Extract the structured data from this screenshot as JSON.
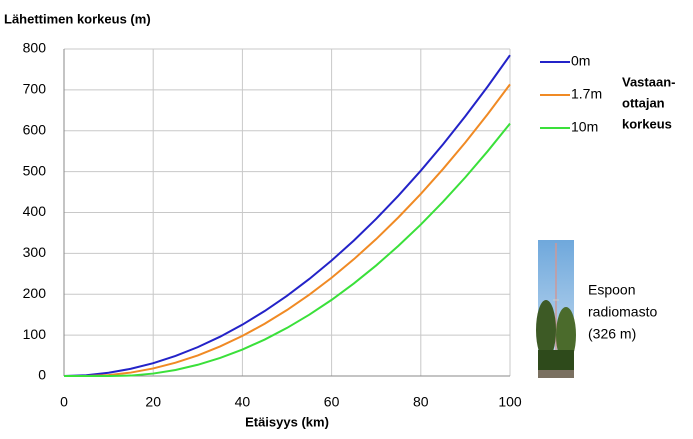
{
  "chart_data": {
    "type": "line",
    "title": "Lähettimen korkeus (m)",
    "x_label": "Etäisyys (km)",
    "legend_title": [
      "Vastaan-",
      "ottajan",
      "korkeus"
    ],
    "annotation": [
      "Espoon",
      "radiomasto",
      "(326 m)"
    ],
    "x": [
      0,
      5,
      10,
      15,
      20,
      25,
      30,
      35,
      40,
      45,
      50,
      55,
      60,
      65,
      70,
      75,
      80,
      85,
      90,
      95,
      100
    ],
    "series": [
      {
        "name": "0m",
        "color": "#2323c8",
        "values": [
          0,
          1.96,
          7.85,
          17.66,
          31.39,
          49.05,
          70.63,
          96.14,
          125.57,
          158.92,
          196.2,
          237.4,
          282.5,
          331.6,
          384.6,
          441.4,
          502.3,
          567.0,
          635.7,
          708.3,
          784.8
        ]
      },
      {
        "name": "1.7m",
        "color": "#f08a24",
        "values": [
          0,
          0.01,
          2.24,
          8.4,
          18.48,
          32.49,
          50.42,
          72.27,
          98.05,
          127.75,
          161.4,
          198.9,
          240.4,
          285.8,
          335.1,
          388.4,
          445.5,
          506.6,
          571.6,
          640.6,
          713.5
        ]
      },
      {
        "name": "10m",
        "color": "#3ae03a",
        "values": [
          0,
          0,
          0,
          1.08,
          5.96,
          14.76,
          27.48,
          44.13,
          64.7,
          89.19,
          117.6,
          149.96,
          186.2,
          226.4,
          270.5,
          318.6,
          370.5,
          426.4,
          486.2,
          550.0,
          617.6
        ]
      }
    ],
    "xlim": [
      0,
      100
    ],
    "xticks": [
      0,
      20,
      40,
      60,
      80,
      100
    ],
    "ylim": [
      0,
      800
    ],
    "yticks": [
      0,
      100,
      200,
      300,
      400,
      500,
      600,
      700,
      800
    ],
    "grid": true
  }
}
